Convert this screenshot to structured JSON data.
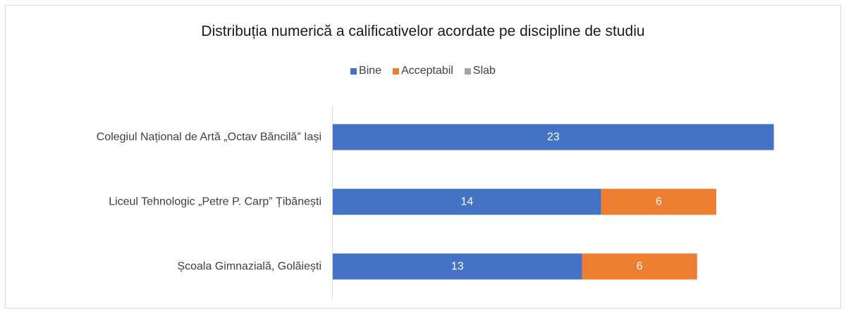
{
  "chart_data": {
    "type": "bar",
    "orientation": "horizontal",
    "stacked": true,
    "title": "Distribuția numerică a calificativelor acordate pe discipline de studiu",
    "categories": [
      "Colegiul Național de Artă „Octav Băncilă” Iași",
      "Liceul Tehnologic „Petre P. Carp” Țibănești",
      "Școala Gimnazială, Golăiești"
    ],
    "series": [
      {
        "name": "Bine",
        "color": "#4472c4",
        "values": [
          23,
          14,
          13
        ]
      },
      {
        "name": "Acceptabil",
        "color": "#ed7d31",
        "values": [
          0,
          6,
          6
        ]
      },
      {
        "name": "Slab",
        "color": "#a5a5a5",
        "values": [
          0,
          0,
          0
        ]
      }
    ],
    "xlim": [
      0,
      25
    ],
    "grid": false,
    "legend_position": "top",
    "show_data_labels": true
  }
}
